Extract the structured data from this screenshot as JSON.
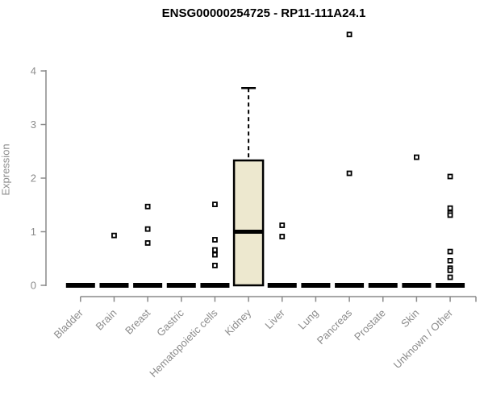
{
  "chart_data": {
    "type": "boxplot",
    "title": "ENSG00000254725 - RP11-111A24.1",
    "ylabel": "Expression",
    "xlabel": "",
    "ylim": [
      0,
      4
    ],
    "yticks": [
      0,
      1,
      2,
      3,
      4
    ],
    "grid": false,
    "legend": "none",
    "colors": {
      "box_fill": "#ede8cf",
      "box_stroke": "#000000",
      "median": "#000000",
      "flat_bar": "#000000",
      "axis": "#8a8a8a",
      "tick_label": "#8c8c8c",
      "title": "#000000",
      "outlier_fill": "#ffffff",
      "outlier_stroke": "#000000"
    },
    "categories": [
      "Bladder",
      "Brain",
      "Breast",
      "Gastric",
      "Hematopoietic cells",
      "Kidney",
      "Liver",
      "Lung",
      "Pancreas",
      "Prostate",
      "Skin",
      "Unknown / Other"
    ],
    "boxes": [
      {
        "category": "Bladder",
        "q1": 0,
        "median": 0,
        "q3": 0,
        "whisker_low": 0,
        "whisker_high": 0,
        "outliers": []
      },
      {
        "category": "Brain",
        "q1": 0,
        "median": 0,
        "q3": 0,
        "whisker_low": 0,
        "whisker_high": 0,
        "outliers": [
          0.93
        ]
      },
      {
        "category": "Breast",
        "q1": 0,
        "median": 0,
        "q3": 0,
        "whisker_low": 0,
        "whisker_high": 0,
        "outliers": [
          1.47,
          1.05,
          0.79
        ]
      },
      {
        "category": "Gastric",
        "q1": 0,
        "median": 0,
        "q3": 0,
        "whisker_low": 0,
        "whisker_high": 0,
        "outliers": []
      },
      {
        "category": "Hematopoietic cells",
        "q1": 0,
        "median": 0,
        "q3": 0,
        "whisker_low": 0,
        "whisker_high": 0,
        "outliers": [
          1.51,
          0.85,
          0.66,
          0.57,
          0.37
        ]
      },
      {
        "category": "Kidney",
        "q1": 0,
        "median": 1.0,
        "q3": 2.33,
        "whisker_low": 0,
        "whisker_high": 3.68,
        "outliers": []
      },
      {
        "category": "Liver",
        "q1": 0,
        "median": 0,
        "q3": 0,
        "whisker_low": 0,
        "whisker_high": 0,
        "outliers": [
          1.12,
          0.91
        ]
      },
      {
        "category": "Lung",
        "q1": 0,
        "median": 0,
        "q3": 0,
        "whisker_low": 0,
        "whisker_high": 0,
        "outliers": []
      },
      {
        "category": "Pancreas",
        "q1": 0,
        "median": 0,
        "q3": 0,
        "whisker_low": 0,
        "whisker_high": 0,
        "outliers": [
          4.68,
          2.09
        ]
      },
      {
        "category": "Prostate",
        "q1": 0,
        "median": 0,
        "q3": 0,
        "whisker_low": 0,
        "whisker_high": 0,
        "outliers": []
      },
      {
        "category": "Skin",
        "q1": 0,
        "median": 0,
        "q3": 0,
        "whisker_low": 0,
        "whisker_high": 0,
        "outliers": [
          2.39
        ]
      },
      {
        "category": "Unknown / Other",
        "q1": 0,
        "median": 0,
        "q3": 0,
        "whisker_low": 0,
        "whisker_high": 0,
        "outliers": [
          2.03,
          1.44,
          1.35,
          1.31,
          0.63,
          0.46,
          0.32,
          0.28,
          0.15
        ]
      }
    ]
  }
}
